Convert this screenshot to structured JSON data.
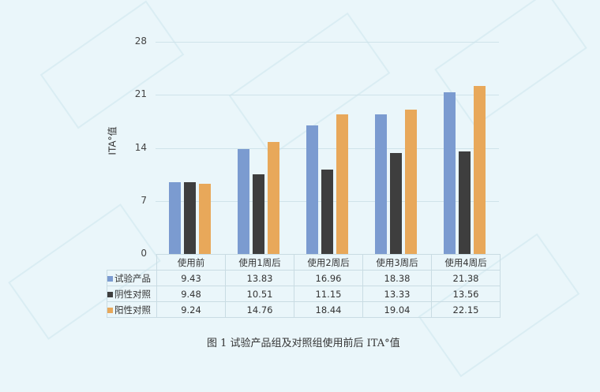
{
  "chart_data": {
    "type": "bar",
    "title": "",
    "xlabel": "",
    "ylabel": "ITA°值",
    "ylim": [
      0,
      28
    ],
    "yticks": [
      0,
      7,
      14,
      21,
      28
    ],
    "categories": [
      "使用前",
      "使用1周后",
      "使用2周后",
      "使用3周后",
      "使用4周后"
    ],
    "series": [
      {
        "name": "试验产品",
        "color": "#7b9bd0",
        "values": [
          9.43,
          13.83,
          16.96,
          18.38,
          21.38
        ]
      },
      {
        "name": "阴性对照",
        "color": "#3e3e3e",
        "values": [
          9.48,
          10.51,
          11.15,
          13.33,
          13.56
        ]
      },
      {
        "name": "阳性对照",
        "color": "#e8a85a",
        "values": [
          9.24,
          14.76,
          18.44,
          19.04,
          22.15
        ]
      }
    ],
    "grid": true,
    "legend_position": "data-table"
  },
  "caption": "图 1 试验产品组及对照组使用前后 ITA°值"
}
